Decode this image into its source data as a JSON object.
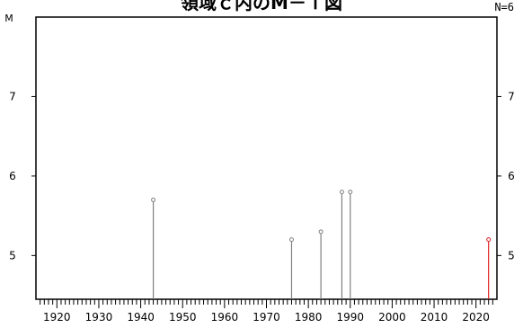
{
  "page": {
    "title": "領域ｃ内のM－Ｔ図",
    "count_label": "N=6"
  },
  "chart_data": {
    "type": "stem",
    "title": "領域ｃ内のM－Ｔ図",
    "ylabel": "M",
    "xlim": [
      1915,
      2025
    ],
    "ylim": [
      4.45,
      8.0
    ],
    "x_ticks": [
      1920,
      1930,
      1940,
      1950,
      1960,
      1970,
      1980,
      1990,
      2000,
      2010,
      2020
    ],
    "x_minor_step": 1,
    "y_ticks": [
      5,
      6,
      7
    ],
    "grid": false,
    "points": [
      {
        "year": 1943,
        "magnitude": 5.7
      },
      {
        "year": 1976,
        "magnitude": 5.2
      },
      {
        "year": 1983,
        "magnitude": 5.3
      },
      {
        "year": 1988,
        "magnitude": 5.8
      },
      {
        "year": 1990,
        "magnitude": 5.8
      },
      {
        "year": 2023,
        "magnitude": 5.2,
        "highlight": true
      }
    ],
    "colors": {
      "normal": "#808080",
      "highlight": "#e02020",
      "axis": "#000000"
    }
  }
}
